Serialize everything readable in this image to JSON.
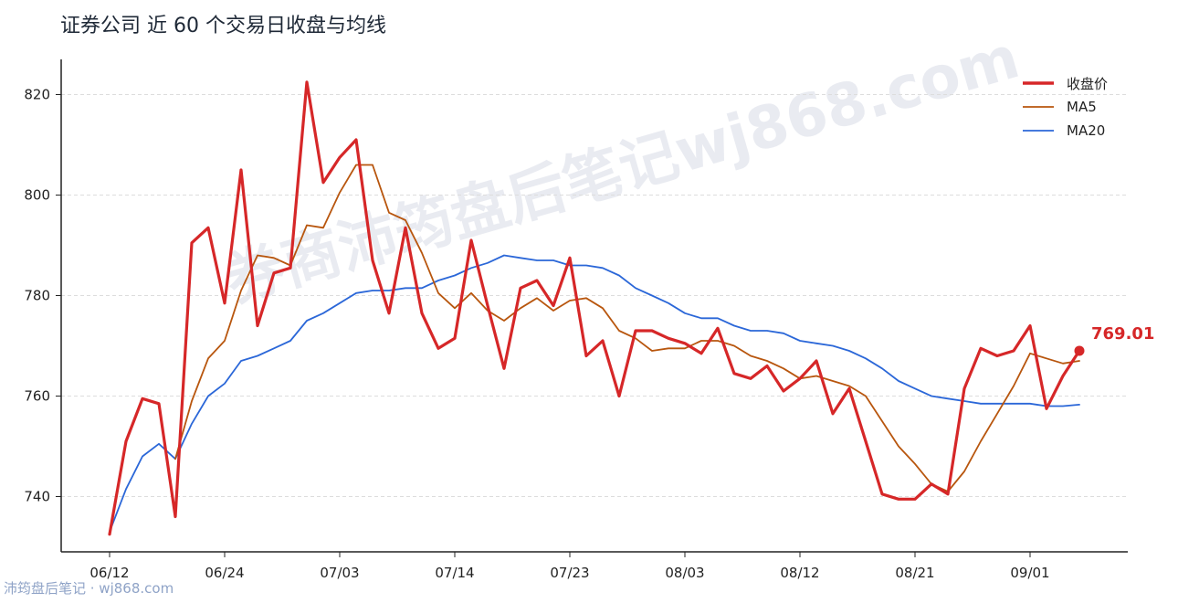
{
  "title": "证券公司 近 60 个交易日收盘与均线",
  "watermark": {
    "big": "券商沛筠盘后笔记wj868.com",
    "corner": "沛筠盘后笔记 · wj868.com"
  },
  "legend": {
    "close": "收盘价",
    "ma5": "MA5",
    "ma20": "MA20"
  },
  "last_label": "769.01",
  "chart_data": {
    "type": "line",
    "title": "证券公司 近 60 个交易日收盘与均线",
    "xlabel": "",
    "ylabel": "",
    "ylim": [
      729,
      827
    ],
    "yticks": [
      740,
      760,
      780,
      800,
      820
    ],
    "xtick_labels": [
      "06/12",
      "06/24",
      "07/03",
      "07/14",
      "07/23",
      "08/03",
      "08/12",
      "08/21",
      "09/01"
    ],
    "xtick_index": [
      0,
      7,
      14,
      21,
      28,
      35,
      42,
      49,
      56
    ],
    "legend_position": "top-right",
    "grid": "horizontal dashed",
    "colors": {
      "close": "#d62728",
      "ma5": "#b8560e",
      "ma20": "#2b67d8",
      "axis": "#222222",
      "grid": "#dddddd",
      "watermark": "#d9dde6"
    },
    "series": [
      {
        "name": "收盘价",
        "values": [
          732.5,
          751,
          759.5,
          758.5,
          736,
          790.5,
          793.5,
          778.5,
          805,
          774,
          784.5,
          785.5,
          822.5,
          802.5,
          807.5,
          811,
          787,
          776.5,
          793.5,
          776.5,
          769.5,
          771.5,
          791,
          778,
          765.5,
          781.5,
          783,
          778,
          787.5,
          768,
          771,
          760,
          773,
          773,
          771.5,
          770.5,
          768.5,
          773.5,
          764.5,
          763.5,
          766,
          761,
          763.5,
          767,
          756.5,
          761.5,
          751,
          740.5,
          739.5,
          739.5,
          742.5,
          740.5,
          761.5,
          769.5,
          768,
          769,
          774,
          757.5,
          764,
          769.01
        ]
      },
      {
        "name": "MA5",
        "values": [
          null,
          null,
          null,
          null,
          747.5,
          759,
          767.5,
          771,
          781,
          788,
          787.5,
          786,
          794,
          793.5,
          800.5,
          806,
          806,
          796.5,
          795,
          788.5,
          780.5,
          777.5,
          780.5,
          777,
          775,
          777.5,
          779.5,
          777,
          779,
          779.5,
          777.5,
          773,
          771.5,
          769,
          769.5,
          769.5,
          771,
          771,
          770,
          768,
          767,
          765.5,
          763.5,
          764,
          763,
          762,
          760,
          755,
          750,
          746.5,
          742.5,
          741,
          745,
          751,
          756.5,
          762,
          768.5,
          767.5,
          766.5,
          767
        ]
      },
      {
        "name": "MA20",
        "values": [
          733,
          741.5,
          748,
          750.5,
          747.5,
          754.5,
          760,
          762.5,
          767,
          768,
          769.5,
          771,
          775,
          776.5,
          778.5,
          780.5,
          781,
          781,
          781.5,
          781.5,
          783,
          784,
          785.5,
          786.5,
          788,
          787.5,
          787,
          787,
          786,
          786,
          785.5,
          784,
          781.5,
          780,
          778.5,
          776.5,
          775.5,
          775.5,
          774,
          773,
          773,
          772.5,
          771,
          770.5,
          770,
          769,
          767.5,
          765.5,
          763,
          761.5,
          760,
          759.5,
          759,
          758.5,
          758.5,
          758.5,
          758.5,
          758,
          758,
          758.3
        ]
      }
    ]
  }
}
